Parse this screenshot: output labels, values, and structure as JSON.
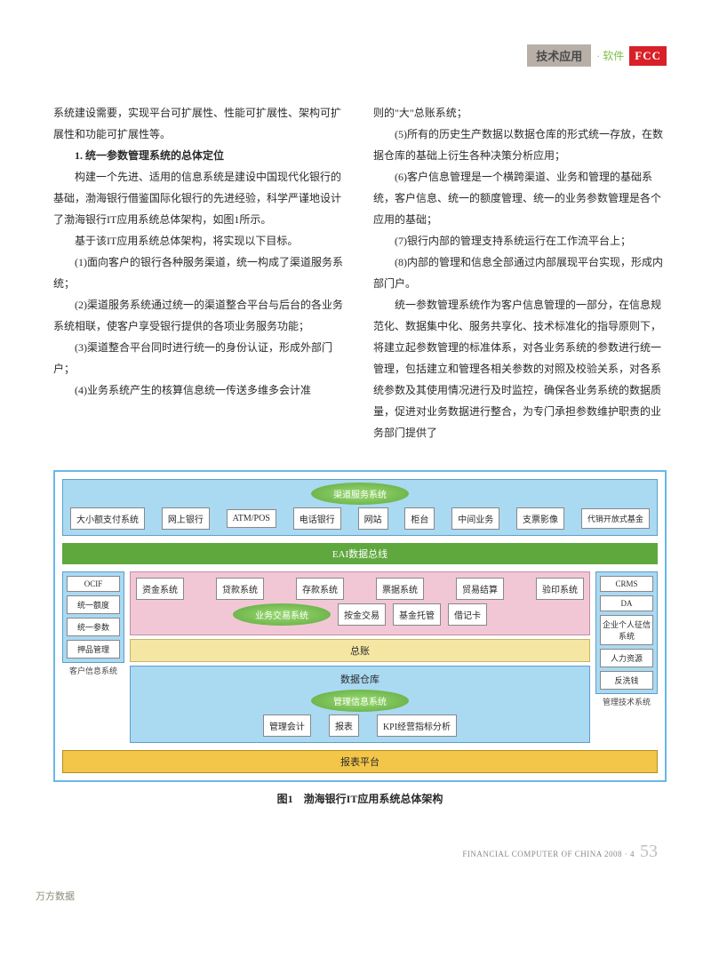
{
  "header": {
    "label": "技术应用",
    "software": "软件",
    "logo": "FCC"
  },
  "left_col": {
    "p1": "系统建设需要，实现平台可扩展性、性能可扩展性、架构可扩展性和功能可扩展性等。",
    "h1": "1. 统一参数管理系统的总体定位",
    "p2": "构建一个先进、适用的信息系统是建设中国现代化银行的基础，渤海银行借鉴国际化银行的先进经验，科学严谨地设计了渤海银行IT应用系统总体架构，如图1所示。",
    "p3": "基于该IT应用系统总体架构，将实现以下目标。",
    "p4": "(1)面向客户的银行各种服务渠道，统一构成了渠道服务系统；",
    "p5": "(2)渠道服务系统通过统一的渠道整合平台与后台的各业务系统相联，使客户享受银行提供的各项业务服务功能；",
    "p6": "(3)渠道整合平台同时进行统一的身份认证，形成外部门户；",
    "p7": "(4)业务系统产生的核算信息统一传送多维多会计准"
  },
  "right_col": {
    "p1": "则的\"大\"总账系统；",
    "p2": "(5)所有的历史生产数据以数据仓库的形式统一存放，在数据仓库的基础上衍生各种决策分析应用；",
    "p3": "(6)客户信息管理是一个横跨渠道、业务和管理的基础系统，客户信息、统一的额度管理、统一的业务参数管理是各个应用的基础；",
    "p4": "(7)银行内部的管理支持系统运行在工作流平台上；",
    "p5": "(8)内部的管理和信息全部通过内部展现平台实现，形成内部门户。",
    "p6": "统一参数管理系统作为客户信息管理的一部分，在信息规范化、数据集中化、服务共享化、技术标准化的指导原则下，将建立起参数管理的标准体系，对各业务系统的参数进行统一管理，包括建立和管理各相关参数的对照及校验关系，对各系统参数及其使用情况进行及时监控，确保各业务系统的数据质量，促进对业务数据进行整合，为专门承担参数维护职责的业务部门提供了"
  },
  "diagram": {
    "channel_title": "渠道服务系统",
    "channels": [
      "大小额支付系统",
      "网上银行",
      "ATM/POS",
      "电话银行",
      "网站",
      "柜台",
      "中间业务",
      "支票影像",
      "代销开放式基金"
    ],
    "eai": "EAI数据总线",
    "left_stack_label": "客户信息系统",
    "left_items": [
      "OCIF",
      "统一额度",
      "统一参数",
      "押品管理"
    ],
    "right_stack_label": "管理技术系统",
    "right_items": [
      "CRMS",
      "DA",
      "企业个人征信系统",
      "人力资源",
      "反洗钱"
    ],
    "biz_row1": [
      "资金系统",
      "贷款系统",
      "存款系统",
      "票据系统",
      "贸易结算",
      "验印系统"
    ],
    "biz_title": "业务交易系统",
    "biz_row2": [
      "按金交易",
      "基金托管",
      "借记卡"
    ],
    "ledger": "总账",
    "warehouse": "数据仓库",
    "mgmt_title": "管理信息系统",
    "mgmt_row": [
      "管理会计",
      "报表",
      "KPI经营指标分析"
    ],
    "report": "报表平台",
    "caption": "图1　渤海银行IT应用系统总体架构"
  },
  "footer": {
    "text": "FINANCIAL COMPUTER OF CHINA  2008 · 4",
    "page": "53",
    "wanfang": "万方数据"
  },
  "colors": {
    "blue_light": "#aad9f2",
    "blue_border": "#5d9fc9",
    "green": "#5fa83e",
    "pink": "#f1c7d6",
    "yellow": "#f5e6a3",
    "orange": "#f3c548",
    "red": "#d82028",
    "header_gray": "#b8b0a8"
  }
}
